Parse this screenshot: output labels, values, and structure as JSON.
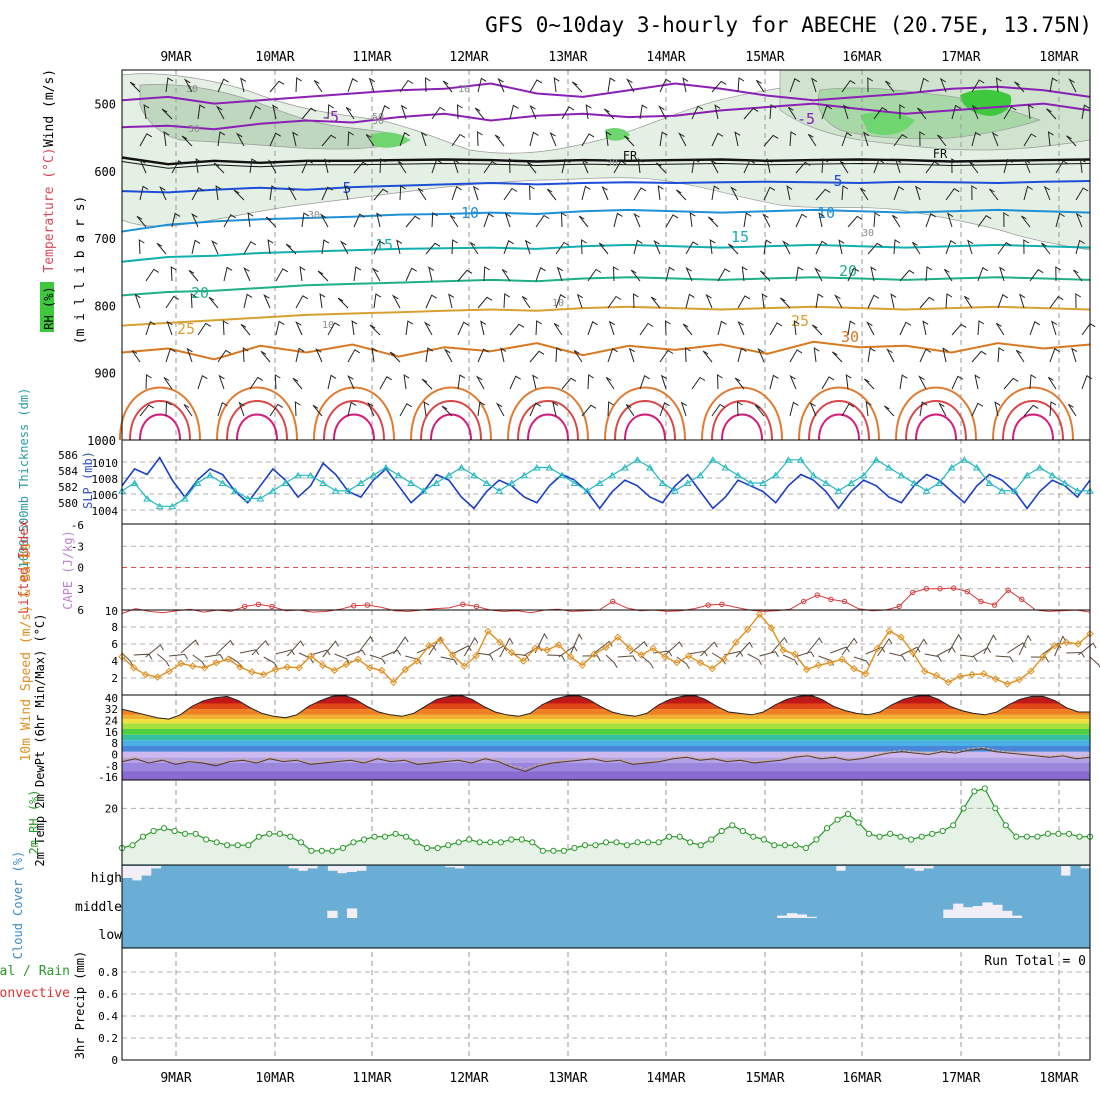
{
  "chart_data": {
    "type": "meteogram",
    "title": "GFS 0~10day 3-hourly for ABECHE (20.75E, 13.75N)",
    "dates": [
      "9MAR",
      "10MAR",
      "11MAR",
      "12MAR",
      "13MAR",
      "14MAR",
      "15MAR",
      "16MAR",
      "17MAR",
      "18MAR"
    ],
    "colors": {
      "trough": "#1a3fc4",
      "thick": "#22b8c0",
      "li": "#d83a3a",
      "wind": "#e09020",
      "rh": "#2a9a2a",
      "cloud": "#6aaed6",
      "cloudbg": "#f2eef7"
    },
    "panels": {
      "upper": {
        "ylabel_wind": "Wind (m/s)",
        "ylabel_temp": "Temperature (°C)",
        "ylabel_rh": "RH (%)",
        "ylabel_units": "(m i l l i b a r s)",
        "yticks": [
          "500",
          "600",
          "700",
          "800",
          "900",
          "1000"
        ],
        "ylim": [
          1000,
          450
        ],
        "isotherms": [
          {
            "label": "-5",
            "levels": [
              535,
              533,
              538,
              530,
              525,
              528,
              520,
              515,
              525,
              518,
              515,
              520,
              518,
              510,
              505,
              500,
              508,
              515,
              510,
              505,
              500,
              510
            ],
            "color": "#8a20b4"
          },
          {
            "label": "-5",
            "levels": [
              495,
              490,
              500,
              495,
              490,
              485,
              480,
              478,
              470,
              485,
              490,
              480,
              470,
              478,
              488,
              495,
              490,
              485,
              478,
              475,
              480,
              490
            ],
            "color": "#8a20b4"
          },
          {
            "label": "FR",
            "levels": [
              580,
              590,
              585,
              588,
              585,
              585,
              584,
              583,
              584,
              586,
              584,
              585,
              584,
              583,
              585,
              584,
              583,
              584,
              586,
              585,
              584,
              583
            ],
            "color": "#111111"
          },
          {
            "label": "5",
            "levels": [
              630,
              632,
              628,
              625,
              628,
              624,
              622,
              620,
              618,
              620,
              618,
              617,
              618,
              617,
              616,
              617,
              618,
              616,
              617,
              618,
              616,
              615
            ],
            "color": "#1e4ed8"
          },
          {
            "label": "10",
            "levels": [
              690,
              680,
              675,
              672,
              670,
              668,
              665,
              664,
              662,
              664,
              660,
              658,
              660,
              662,
              660,
              658,
              660,
              662,
              660,
              658,
              660,
              662
            ],
            "color": "#1e90d8"
          },
          {
            "label": "15",
            "levels": [
              735,
              728,
              726,
              722,
              720,
              718,
              716,
              715,
              714,
              716,
              712,
              710,
              712,
              714,
              712,
              710,
              712,
              714,
              712,
              710,
              712,
              714
            ],
            "color": "#10b0b0"
          },
          {
            "label": "20",
            "levels": [
              785,
              780,
              778,
              774,
              770,
              768,
              766,
              764,
              762,
              764,
              760,
              758,
              760,
              762,
              760,
              758,
              760,
              762,
              760,
              758,
              760,
              762
            ],
            "color": "#20b088"
          },
          {
            "label": "25",
            "levels": [
              830,
              826,
              822,
              818,
              814,
              812,
              810,
              808,
              806,
              808,
              804,
              802,
              804,
              806,
              804,
              802,
              804,
              806,
              804,
              802,
              804,
              806
            ],
            "color": "#d8a030"
          },
          {
            "label": "30",
            "levels": [
              870,
              864,
              880,
              860,
              870,
              858,
              876,
              862,
              868,
              856,
              874,
              860,
              866,
              858,
              872,
              854,
              862,
              860,
              870,
              856,
              864,
              858
            ],
            "color": "#d87820"
          }
        ],
        "contour_labels": [
          "30",
          "50",
          "10",
          "50",
          "30",
          "30",
          "30",
          "10",
          "10",
          "30"
        ]
      },
      "slp": {
        "ylabel_left": "1000~500mb Thickness (dm)",
        "ylabel_right": "SLP (mb)",
        "yticks_left": [
          "586",
          "584",
          "582",
          "580"
        ],
        "yticks_right": [
          "1010",
          "1008",
          "1006",
          "1004"
        ],
        "trough_slp": [
          1007,
          1010,
          1009,
          1012,
          1008,
          1005,
          1008,
          1010,
          1009,
          1006,
          1004,
          1007,
          1010,
          1008,
          1005,
          1007,
          1011,
          1009,
          1006,
          1005,
          1008,
          1010,
          1007,
          1004,
          1006,
          1009,
          1008,
          1005,
          1003,
          1006,
          1008,
          1007,
          1005,
          1004,
          1007,
          1009,
          1008,
          1006,
          1003,
          1006,
          1008,
          1007,
          1005,
          1004,
          1007,
          1009,
          1006,
          1003,
          1005,
          1008,
          1007,
          1006,
          1004,
          1007,
          1009,
          1008,
          1006,
          1003,
          1006,
          1008,
          1007,
          1005,
          1004,
          1007,
          1009,
          1008,
          1006,
          1004,
          1007,
          1009,
          1008,
          1006,
          1003,
          1006,
          1008,
          1007,
          1005,
          1008
        ],
        "thickness": [
          582,
          583,
          581,
          580,
          580,
          581,
          583,
          584,
          583,
          582,
          581,
          581,
          582,
          583,
          584,
          584,
          583,
          582,
          582,
          583,
          584,
          585,
          584,
          583,
          582,
          583,
          584,
          585,
          584,
          583,
          582,
          583,
          584,
          585,
          585,
          584,
          583,
          582,
          583,
          584,
          585,
          586,
          585,
          583,
          582,
          583,
          584,
          586,
          585,
          584,
          583,
          583,
          584,
          586,
          586,
          584,
          583,
          582,
          583,
          584,
          586,
          585,
          584,
          583,
          582,
          583,
          585,
          586,
          585,
          583,
          582,
          582,
          584,
          585,
          584,
          583,
          582,
          582
        ]
      },
      "cape": {
        "ylabel_left": "Lifted Index",
        "ylabel_right": "CAPE (J/kg)",
        "yticks": [
          "-6",
          "-3",
          "0",
          "3",
          "6"
        ],
        "ytick_right": "10",
        "li": [
          6.5,
          5.8,
          6.2,
          6.4,
          6.1,
          5.9,
          6.3,
          6.0,
          6.2,
          5.5,
          5.2,
          5.5,
          6.1,
          6.0,
          6.3,
          6.2,
          5.9,
          5.4,
          5.3,
          5.6,
          6.1,
          6.2,
          6.0,
          5.8,
          5.7,
          5.2,
          5.5,
          6.0,
          6.2,
          6.1,
          6.4,
          6.0,
          5.9,
          6.2,
          6.1,
          6.0,
          4.8,
          5.7,
          6.1,
          6.0,
          6.2,
          6.1,
          5.8,
          5.3,
          5.2,
          5.6,
          6.0,
          6.2,
          6.1,
          5.9,
          4.8,
          3.9,
          4.5,
          4.8,
          5.8,
          6.1,
          6.0,
          5.5,
          3.5,
          3.0,
          3.0,
          2.9,
          3.4,
          4.8,
          5.3,
          3.2,
          4.5,
          6.0,
          6.2,
          6.1,
          6.0,
          6.3
        ]
      },
      "wind": {
        "ylabel": "10m Wind Speed (m/s) & Barbs",
        "yticks": [
          "2",
          "4",
          "6",
          "8"
        ],
        "ylim": [
          0,
          10
        ],
        "speed": [
          4.5,
          3.2,
          2.4,
          2.1,
          2.8,
          3.7,
          3.4,
          3.2,
          3.8,
          4.2,
          3.3,
          2.7,
          2.4,
          3.0,
          3.3,
          3.2,
          4.6,
          3.5,
          2.9,
          3.6,
          4.2,
          3.2,
          2.9,
          1.5,
          3.0,
          4.0,
          5.8,
          6.5,
          4.7,
          3.4,
          4.6,
          7.5,
          6.2,
          5.0,
          4.0,
          5.5,
          5.3,
          5.9,
          4.5,
          3.5,
          4.8,
          5.6,
          6.8,
          5.5,
          4.7,
          5.5,
          4.5,
          3.8,
          4.6,
          3.8,
          3.1,
          4.2,
          6.2,
          7.7,
          9.5,
          7.9,
          5.3,
          4.8,
          3.0,
          3.5,
          3.8,
          4.2,
          3.1,
          2.5,
          5.5,
          7.5,
          6.8,
          5.0,
          2.8,
          2.3,
          1.5,
          2.2,
          2.4,
          2.5,
          1.9,
          1.3,
          1.8,
          2.8,
          4.5,
          5.8,
          6.2,
          6.0,
          7.2
        ]
      },
      "temp": {
        "ylabel": "2m Temp 2m DewPt (6hr Min/Max) (°C)",
        "yticks": [
          "40",
          "32",
          "24",
          "16",
          "8",
          "0",
          "-8",
          "-16"
        ],
        "ylim": [
          -18,
          42
        ],
        "tmax": [
          32,
          30,
          28,
          26,
          25,
          28,
          34,
          38,
          40,
          41,
          38,
          33,
          29,
          27,
          26,
          28,
          34,
          38,
          41,
          42,
          39,
          34,
          30,
          28,
          27,
          29,
          34,
          39,
          41,
          42,
          39,
          34,
          30,
          28,
          27,
          29,
          35,
          39,
          41,
          42,
          39,
          34,
          30,
          28,
          27,
          29,
          35,
          39,
          41,
          42,
          39,
          34,
          30,
          29,
          28,
          30,
          35,
          39,
          41,
          42,
          39,
          34,
          31,
          29,
          28,
          30,
          35,
          39,
          41,
          42,
          39,
          34,
          31,
          29,
          28,
          30,
          35,
          39,
          41,
          41,
          38,
          33,
          30,
          30
        ],
        "dewpt": [
          -5,
          -3,
          -6,
          -4,
          -7,
          -5,
          -6,
          -8,
          -5,
          -4,
          -6,
          -3,
          -5,
          -4,
          -7,
          -6,
          -5,
          -4,
          -6,
          -3,
          -5,
          -4,
          -7,
          -6,
          -5,
          -4,
          -6,
          -3,
          -5,
          -9,
          -12,
          -8,
          -6,
          -5,
          -4,
          -3,
          -5,
          -4,
          -7,
          -6,
          -5,
          -3,
          -2,
          -4,
          -3,
          -5,
          -4,
          -6,
          -5,
          -4,
          -2,
          -1,
          -3,
          -2,
          -4,
          -3,
          -1,
          1,
          2,
          1,
          0,
          2,
          1,
          3,
          4,
          2,
          1,
          0,
          -1,
          -2,
          -1,
          -3,
          -2
        ],
        "dewpt_dashed": [
          -3,
          -2,
          -4,
          -3,
          -5,
          -4,
          -5,
          -6,
          -4,
          -3,
          -5,
          -2,
          -4,
          -3,
          -6,
          -5,
          -4,
          -3,
          -5,
          -2,
          -4,
          -3,
          -6,
          -5,
          -4,
          -3,
          -5,
          -2,
          -4,
          -8,
          -10,
          -7,
          -5,
          -4,
          -3,
          -2,
          -4,
          -3,
          -6,
          -5,
          -4,
          -2,
          -1,
          -3,
          -2,
          -4,
          -3,
          -5,
          -4,
          -3,
          -1,
          0,
          -2,
          -1,
          -3,
          -2,
          0,
          2,
          3,
          2,
          1,
          3,
          2,
          4,
          5,
          3,
          2,
          1,
          0,
          -1,
          0,
          -2,
          -1
        ]
      },
      "rh": {
        "ylabel": "2m RH (%)",
        "ytick": "20",
        "ylim": [
          0,
          30
        ],
        "values": [
          6,
          7,
          10,
          12,
          13,
          12,
          11,
          11,
          9,
          8,
          7,
          7,
          7,
          10,
          11,
          11,
          10,
          8,
          5,
          5,
          5,
          6,
          8,
          9,
          10,
          10,
          11,
          10,
          8,
          6,
          6,
          7,
          8,
          9,
          8,
          8,
          8,
          9,
          9,
          8,
          5,
          5,
          5,
          6,
          7,
          7,
          8,
          8,
          7,
          8,
          8,
          8,
          10,
          10,
          8,
          7,
          9,
          12,
          14,
          12,
          10,
          9,
          7,
          7,
          7,
          6,
          9,
          13,
          16,
          18,
          15,
          11,
          10,
          11,
          10,
          9,
          10,
          11,
          12,
          14,
          20,
          26,
          27,
          20,
          14,
          10,
          10,
          10,
          11,
          11,
          11,
          10,
          10
        ]
      },
      "cloud": {
        "ylabel": "Cloud Cover (%)",
        "labels": [
          "high",
          "middle",
          "low"
        ],
        "high": [
          0.5,
          0.6,
          0.4,
          0.1,
          0,
          0,
          0,
          0,
          0,
          0,
          0,
          0,
          0,
          0,
          0,
          0,
          0,
          0.1,
          0.2,
          0.1,
          0,
          0.2,
          0.3,
          0.25,
          0.2,
          0,
          0,
          0,
          0,
          0,
          0,
          0,
          0,
          0.05,
          0.1,
          0,
          0,
          0,
          0,
          0,
          0,
          0,
          0,
          0,
          0,
          0,
          0,
          0,
          0,
          0,
          0,
          0,
          0,
          0,
          0,
          0,
          0,
          0,
          0,
          0,
          0,
          0,
          0,
          0,
          0,
          0,
          0,
          0,
          0,
          0,
          0,
          0,
          0,
          0.2,
          0,
          0,
          0,
          0,
          0,
          0,
          0.1,
          0.2,
          0.1,
          0,
          0,
          0,
          0,
          0,
          0,
          0,
          0,
          0,
          0,
          0,
          0,
          0,
          0.4,
          0,
          0.1
        ],
        "middle": [
          0,
          0,
          0,
          0,
          0,
          0,
          0,
          0,
          0,
          0,
          0,
          0,
          0,
          0,
          0,
          0,
          0,
          0,
          0,
          0,
          0,
          0.3,
          0,
          0.4,
          0,
          0,
          0,
          0,
          0,
          0,
          0,
          0,
          0,
          0,
          0,
          0,
          0,
          0,
          0,
          0,
          0,
          0,
          0,
          0,
          0,
          0,
          0,
          0,
          0,
          0,
          0,
          0,
          0,
          0,
          0,
          0,
          0,
          0,
          0,
          0,
          0,
          0,
          0,
          0,
          0,
          0,
          0,
          0.1,
          0.2,
          0.15,
          0.05,
          0,
          0,
          0,
          0,
          0,
          0,
          0,
          0,
          0,
          0,
          0,
          0,
          0,
          0.35,
          0.6,
          0.45,
          0.5,
          0.65,
          0.55,
          0.3,
          0.1,
          0,
          0,
          0,
          0,
          0,
          0,
          0
        ]
      },
      "precip": {
        "ylabel": "3hr Precip (mm)",
        "ylabel_legend_total": "Total / Rain",
        "ylabel_legend_conv": "Convective",
        "yticks": [
          "0",
          "0.2",
          "0.4",
          "0.6",
          "0.8"
        ],
        "run_total": "Run Total = 0"
      }
    }
  }
}
